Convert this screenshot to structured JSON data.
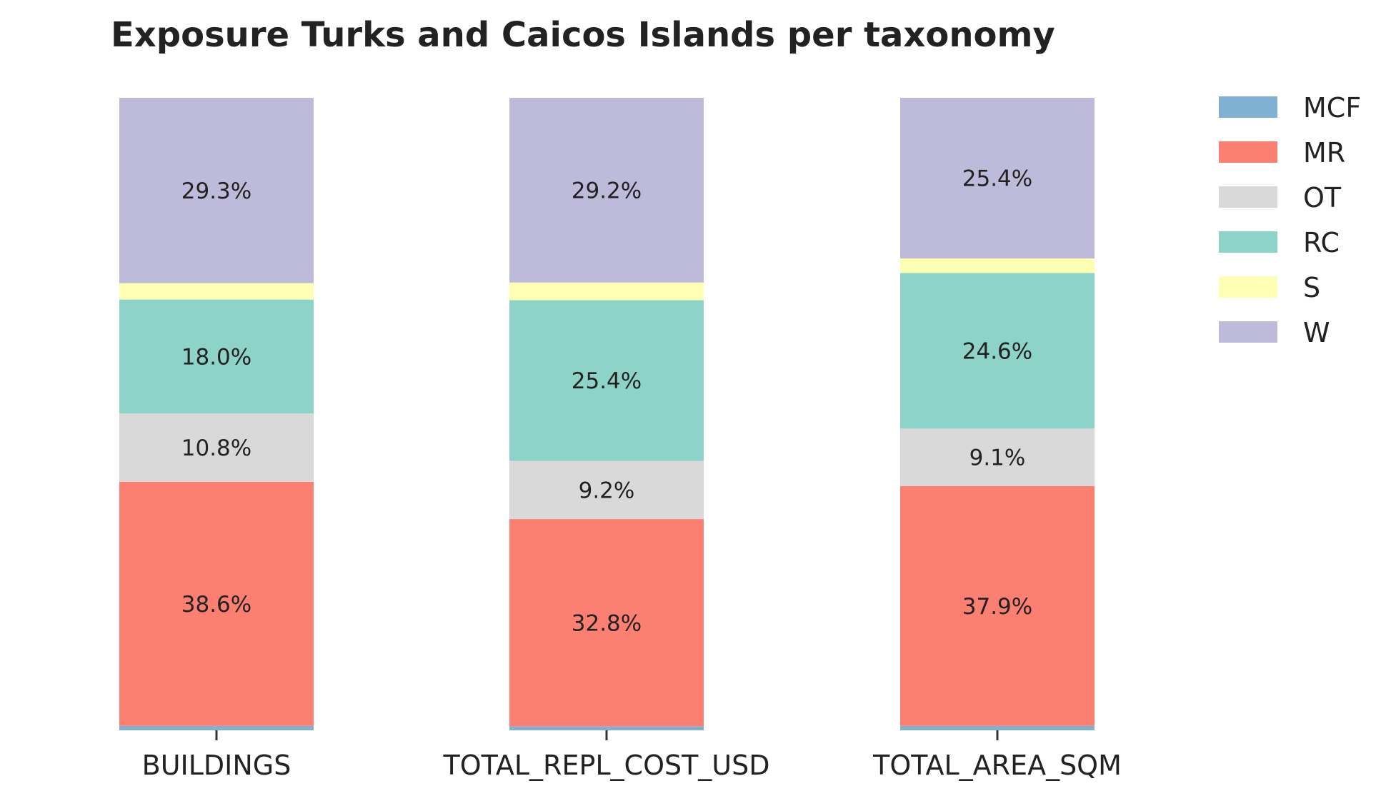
{
  "chart_data": {
    "type": "bar",
    "stacked": true,
    "normalized": true,
    "title": "Exposure Turks and Caicos Islands per taxonomy",
    "xlabel": "",
    "ylabel": "",
    "ylim": [
      0,
      100
    ],
    "grid": false,
    "legend_position": "top-right, outside plot",
    "categories": [
      "BUILDINGS",
      "TOTAL_REPL_COST_USD",
      "TOTAL_AREA_SQM"
    ],
    "series": [
      {
        "name": "MCF",
        "color": "#80b1d3",
        "values": [
          0.7,
          0.6,
          0.7
        ],
        "labels": [
          "",
          "",
          ""
        ]
      },
      {
        "name": "MR",
        "color": "#fb8072",
        "values": [
          38.6,
          32.8,
          37.9
        ],
        "labels": [
          "38.6%",
          "32.8%",
          "37.9%"
        ]
      },
      {
        "name": "OT",
        "color": "#d9d9d9",
        "values": [
          10.8,
          9.2,
          9.1
        ],
        "labels": [
          "10.8%",
          "9.2%",
          "9.1%"
        ]
      },
      {
        "name": "RC",
        "color": "#8dd3c7",
        "values": [
          18.0,
          25.4,
          24.6
        ],
        "labels": [
          "18.0%",
          "25.4%",
          "24.6%"
        ]
      },
      {
        "name": "S",
        "color": "#ffffb3",
        "values": [
          2.6,
          2.8,
          2.3
        ],
        "labels": [
          "",
          "",
          ""
        ]
      },
      {
        "name": "W",
        "color": "#bebada",
        "values": [
          29.3,
          29.2,
          25.4
        ],
        "labels": [
          "29.3%",
          "29.2%",
          "25.4%"
        ]
      }
    ]
  }
}
